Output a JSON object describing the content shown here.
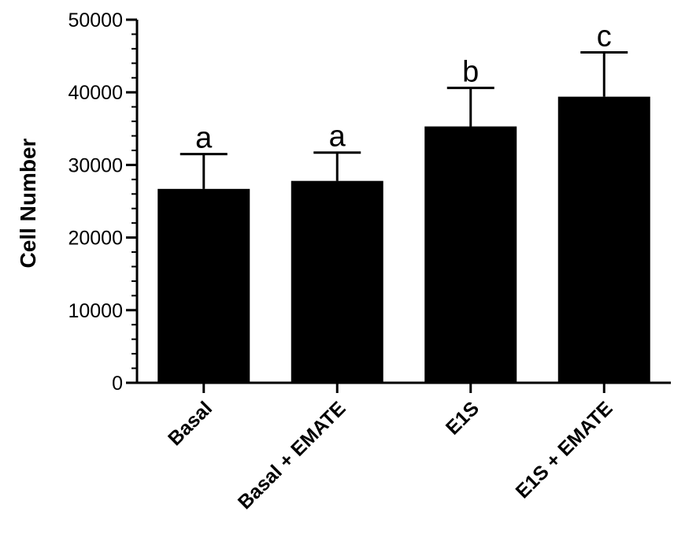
{
  "chart_data": {
    "type": "bar",
    "ylabel": "Cell Number",
    "xlabel": "",
    "categories": [
      "Basal",
      "Basal + EMATE",
      "E1S",
      "E1S + EMATE"
    ],
    "values": [
      26700,
      27800,
      35300,
      39400
    ],
    "error_upper": [
      31500,
      31700,
      40600,
      45500
    ],
    "significance_labels": [
      "a",
      "a",
      "b",
      "c"
    ],
    "ylim": [
      0,
      50000
    ],
    "y_ticks": [
      "0",
      "10000",
      "20000",
      "30000",
      "40000",
      "50000"
    ],
    "y_minor_step": 2000,
    "grid": false,
    "bar_color": "#000000"
  }
}
